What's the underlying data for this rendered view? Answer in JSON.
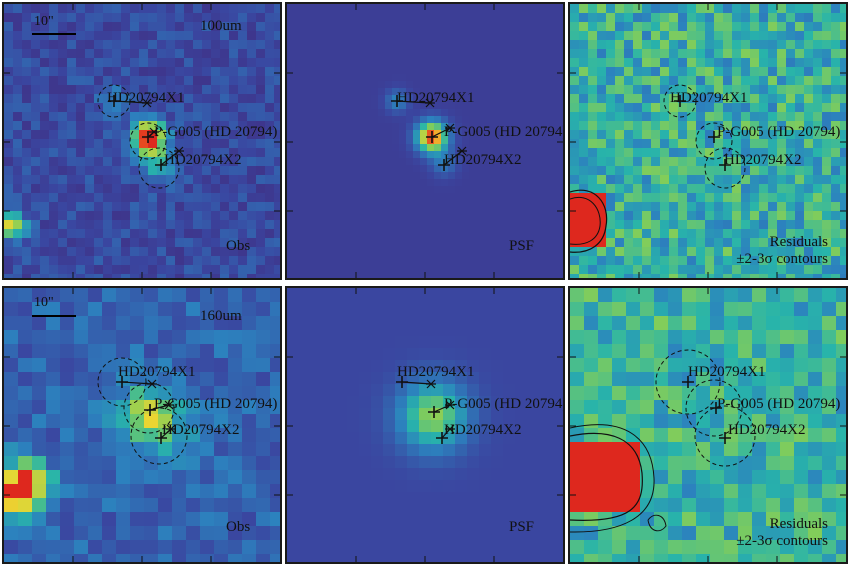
{
  "panels": [
    {
      "id": "p100-obs",
      "band_label": "100um",
      "kind_label": "Obs",
      "scale_label": "10\""
    },
    {
      "id": "p100-psf",
      "band_label": "",
      "kind_label": "PSF",
      "scale_label": ""
    },
    {
      "id": "p100-res",
      "band_label": "",
      "kind_label": "Residuals\n±2-3σ contours",
      "scale_label": ""
    },
    {
      "id": "p160-obs",
      "band_label": "160um",
      "kind_label": "Obs",
      "scale_label": "10\""
    },
    {
      "id": "p160-psf",
      "band_label": "",
      "kind_label": "PSF",
      "scale_label": ""
    },
    {
      "id": "p160-res",
      "band_label": "",
      "kind_label": "Residuals\n±2-3σ contours",
      "scale_label": ""
    }
  ],
  "sources": {
    "x1": "HD20794X1",
    "main": "P-G005 (HD 20794)",
    "x2": "HD20794X2"
  },
  "colors": {
    "background_field": "#4a3f8f",
    "psf_background": "#3b4a9a",
    "residual_field": "#3ec8a0",
    "peak": "#e02a1f",
    "frame": "#1a1a1a"
  }
}
